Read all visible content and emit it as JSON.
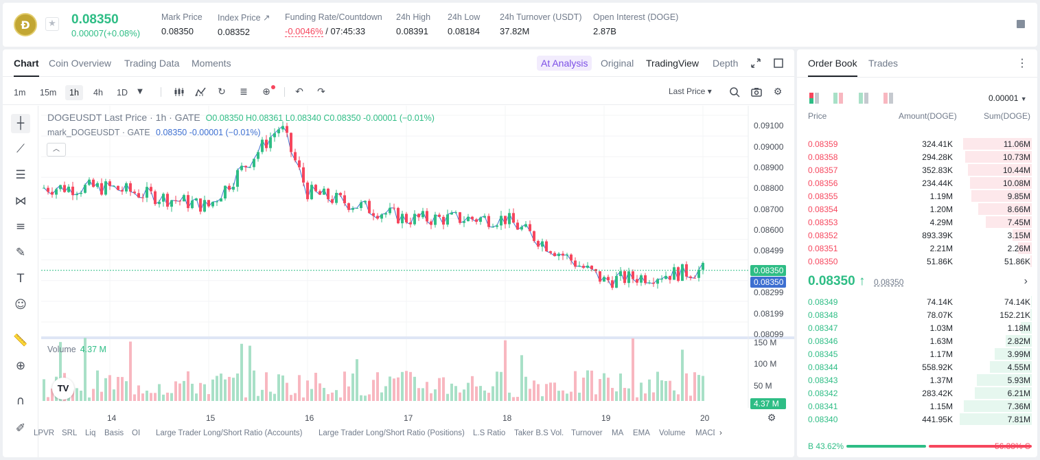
{
  "header": {
    "logo": "Ð",
    "last_price": "0.08350",
    "change": "0.00007(+0.08%)",
    "stats": [
      {
        "label": "Mark Price",
        "value": "0.08350"
      },
      {
        "label": "Index Price ↗",
        "value": "0.08352"
      },
      {
        "label": "Funding Rate/Countdown",
        "value_red": "-0.0046%",
        "value_rest": "/ 07:45:33"
      },
      {
        "label": "24h High",
        "value": "0.08391"
      },
      {
        "label": "24h Low",
        "value": "0.08184"
      },
      {
        "label": "24h Turnover (USDT)",
        "value": "37.82M"
      },
      {
        "label": "Open Interest (DOGE)",
        "value": "2.87B"
      }
    ]
  },
  "chart_tabs": [
    "Chart",
    "Coin Overview",
    "Trading Data",
    "Moments"
  ],
  "view_tabs": {
    "analysis": "A͏t Analysis",
    "original": "Original",
    "tradingview": "TradingView",
    "depth": "Depth"
  },
  "timeframes": [
    "1m",
    "15m",
    "1h",
    "4h",
    "1D"
  ],
  "price_type": "Last Price ▾",
  "legend": {
    "title": "DOGEUSDT Last Price · 1h · GATE",
    "ohlc": "O0.08350  H0.08361  L0.08340  C0.08350  -0.00001  (−0.01%)",
    "mark": "mark_DOGEUSDT · GATE",
    "mark_values": "0.08350  -0.00001  (−0.01%)",
    "volume_label": "Volume",
    "volume_value": "4.37 M"
  },
  "y_ticks": [
    "0.09100",
    "0.09000",
    "0.08900",
    "0.08800",
    "0.08700",
    "0.08600",
    "0.08499",
    "0.08299",
    "0.08199",
    "0.08099"
  ],
  "badges": {
    "last": "0.08350",
    "mark": "0.08350",
    "volume": "4.37 M"
  },
  "vol_ticks": [
    "150 M",
    "100 M",
    "50 M"
  ],
  "x_ticks": [
    "14",
    "15",
    "16",
    "17",
    "18",
    "19",
    "20"
  ],
  "indicators": [
    "LPVR",
    "SRL",
    "Liq",
    "Basis",
    "OI",
    "Large Trader Long/Short Ratio (Accounts)",
    "Large Trader Long/Short Ratio (Positions)",
    "L.S Ratio",
    "Taker B.S Vol.",
    "Turnover",
    "MA",
    "EMA",
    "Volume",
    "MACD"
  ],
  "colors": {
    "up": "#2ebd85",
    "down": "#f6465d",
    "mark_line": "#3d6fd1"
  },
  "chart_data": {
    "type": "candlestick",
    "symbol": "DOGEUSDT",
    "interval": "1h",
    "ylim": [
      0.0805,
      0.0912
    ],
    "x": [
      "14",
      "15",
      "16",
      "17",
      "18",
      "19",
      "20"
    ],
    "key_points": [
      {
        "x": "14",
        "y": 0.0875
      },
      {
        "x": "15",
        "y": 0.0866
      },
      {
        "x": "15",
        "y": 0.0905
      },
      {
        "x": "16",
        "y": 0.0873
      },
      {
        "x": "17",
        "y": 0.086
      },
      {
        "x": "18",
        "y": 0.086
      },
      {
        "x": "19",
        "y": 0.083
      },
      {
        "x": "20",
        "y": 0.0835
      }
    ],
    "last": 0.0835
  },
  "orderbook": {
    "tabs": [
      "Order Book",
      "Trades"
    ],
    "precision": "0.00001",
    "headers": [
      "Price",
      "Amount(DOGE)",
      "Sum(DOGE)"
    ],
    "asks": [
      {
        "price": "0.08359",
        "amount": "324.41K",
        "sum": "11.06M",
        "depth": 0.95
      },
      {
        "price": "0.08358",
        "amount": "294.28K",
        "sum": "10.73M",
        "depth": 0.92
      },
      {
        "price": "0.08357",
        "amount": "352.83K",
        "sum": "10.44M",
        "depth": 0.89
      },
      {
        "price": "0.08356",
        "amount": "234.44K",
        "sum": "10.08M",
        "depth": 0.86
      },
      {
        "price": "0.08355",
        "amount": "1.19M",
        "sum": "9.85M",
        "depth": 0.84
      },
      {
        "price": "0.08354",
        "amount": "1.20M",
        "sum": "8.66M",
        "depth": 0.74
      },
      {
        "price": "0.08353",
        "amount": "4.29M",
        "sum": "7.45M",
        "depth": 0.64
      },
      {
        "price": "0.08352",
        "amount": "893.39K",
        "sum": "3.15M",
        "depth": 0.27
      },
      {
        "price": "0.08351",
        "amount": "2.21M",
        "sum": "2.26M",
        "depth": 0.19
      },
      {
        "price": "0.08350",
        "amount": "51.86K",
        "sum": "51.86K",
        "depth": 0.02
      }
    ],
    "mid_price": "0.08350 ↑",
    "mid_mark": "0.08350",
    "bids": [
      {
        "price": "0.08349",
        "amount": "74.14K",
        "sum": "74.14K",
        "depth": 0.01
      },
      {
        "price": "0.08348",
        "amount": "78.07K",
        "sum": "152.21K",
        "depth": 0.02
      },
      {
        "price": "0.08347",
        "amount": "1.03M",
        "sum": "1.18M",
        "depth": 0.15
      },
      {
        "price": "0.08346",
        "amount": "1.63M",
        "sum": "2.82M",
        "depth": 0.36
      },
      {
        "price": "0.08345",
        "amount": "1.17M",
        "sum": "3.99M",
        "depth": 0.51
      },
      {
        "price": "0.08344",
        "amount": "558.92K",
        "sum": "4.55M",
        "depth": 0.58
      },
      {
        "price": "0.08343",
        "amount": "1.37M",
        "sum": "5.93M",
        "depth": 0.76
      },
      {
        "price": "0.08342",
        "amount": "283.42K",
        "sum": "6.21M",
        "depth": 0.79
      },
      {
        "price": "0.08341",
        "amount": "1.15M",
        "sum": "7.36M",
        "depth": 0.94
      },
      {
        "price": "0.08340",
        "amount": "441.95K",
        "sum": "7.81M",
        "depth": 1.0
      }
    ],
    "buy_ratio": "B 43.62%",
    "sell_ratio": "56.38% S",
    "buy_fraction": 0.4362
  }
}
